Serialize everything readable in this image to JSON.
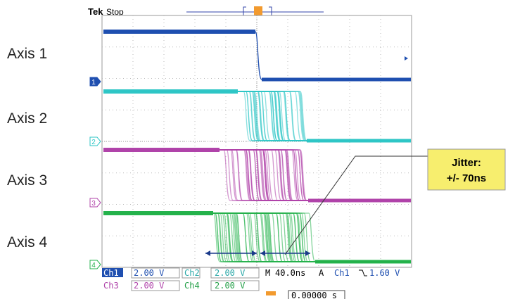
{
  "header": {
    "brand": "Tek",
    "status": "Stop"
  },
  "axes": [
    "Axis 1",
    "Axis 2",
    "Axis 3",
    "Axis 4"
  ],
  "channel_markers": [
    "1",
    "2",
    "3",
    "4"
  ],
  "callout": {
    "title": "Jitter:",
    "text": "+/- 70ns"
  },
  "readout": {
    "rows": [
      [
        "Ch1",
        "2.00 V",
        "Ch2",
        "2.00 V",
        "M",
        "40.0ns",
        "A",
        "Ch1",
        "1.60 V"
      ],
      [
        "Ch3",
        "2.00 V",
        "Ch4",
        "2.00 V"
      ]
    ],
    "time": "0.00000 s"
  }
}
